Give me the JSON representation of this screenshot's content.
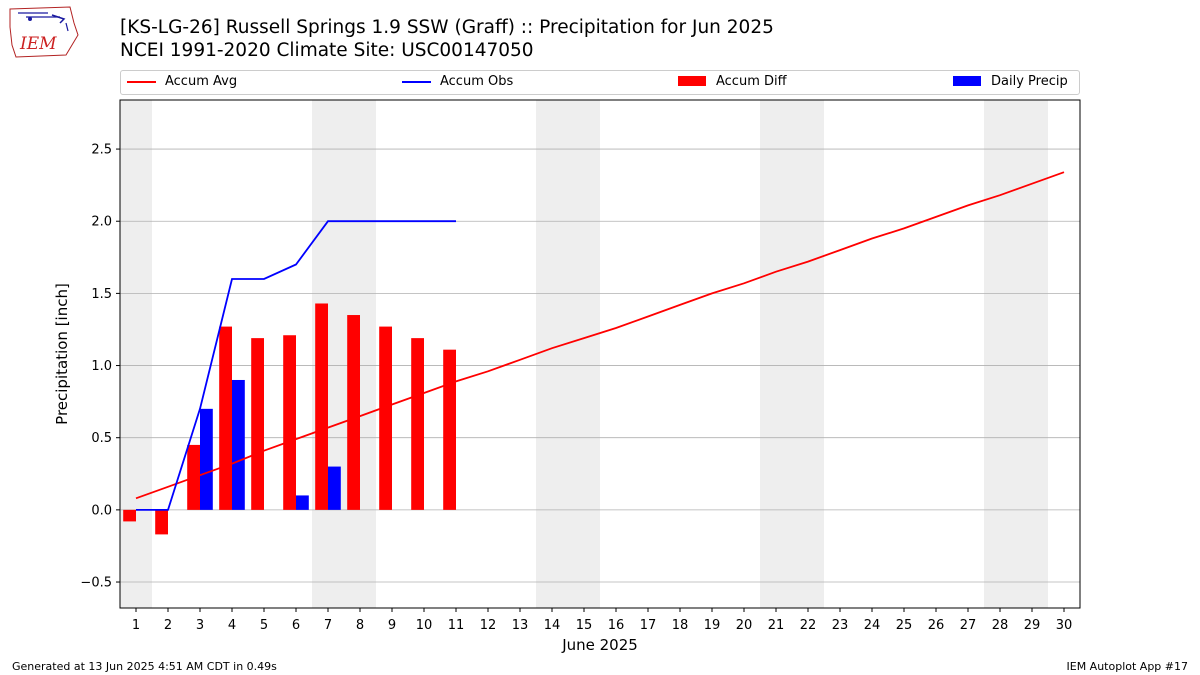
{
  "header": {
    "title_line1": "[KS-LG-26] Russell Springs 1.9 SSW (Graff) :: Precipitation for Jun 2025",
    "title_line2": "NCEI 1991-2020 Climate Site: USC00147050"
  },
  "logo": {
    "text": "IEM"
  },
  "footer": {
    "left": "Generated at 13 Jun 2025 4:51 AM CDT in 0.49s",
    "right": "IEM Autoplot App #17"
  },
  "colors": {
    "accum_avg": "#ff0000",
    "accum_obs": "#0000ff",
    "accum_diff": "#ff0000",
    "daily_precip": "#0000ff",
    "weekend_band": "#eeeeee",
    "grid": "#b0b0b0"
  },
  "chart_data": {
    "type": "bar",
    "xlabel": "June 2025",
    "ylabel": "Precipitation [inch]",
    "xlim": [
      0.5,
      30.5
    ],
    "ylim": [
      -0.68,
      2.84
    ],
    "x_ticks": [
      1,
      2,
      3,
      4,
      5,
      6,
      7,
      8,
      9,
      10,
      11,
      12,
      13,
      14,
      15,
      16,
      17,
      18,
      19,
      20,
      21,
      22,
      23,
      24,
      25,
      26,
      27,
      28,
      29,
      30
    ],
    "y_ticks": [
      -0.5,
      0.0,
      0.5,
      1.0,
      1.5,
      2.0,
      2.5
    ],
    "y_tick_labels": [
      "−0.5",
      "0.0",
      "0.5",
      "1.0",
      "1.5",
      "2.0",
      "2.5"
    ],
    "grid": "horizontal",
    "legend_position": "top",
    "weekend_days": [
      1,
      7,
      8,
      14,
      15,
      21,
      22,
      28,
      29
    ],
    "legend": [
      {
        "name": "Accum Avg",
        "kind": "line",
        "color": "#ff0000"
      },
      {
        "name": "Accum Obs",
        "kind": "line",
        "color": "#0000ff"
      },
      {
        "name": "Accum Diff",
        "kind": "bar",
        "color": "#ff0000"
      },
      {
        "name": "Daily Precip",
        "kind": "bar",
        "color": "#0000ff"
      }
    ],
    "series": [
      {
        "name": "Accum Avg",
        "type": "line",
        "x": [
          1,
          2,
          3,
          4,
          5,
          6,
          7,
          8,
          9,
          10,
          11,
          12,
          13,
          14,
          15,
          16,
          17,
          18,
          19,
          20,
          21,
          22,
          23,
          24,
          25,
          26,
          27,
          28,
          29,
          30
        ],
        "values": [
          0.08,
          0.16,
          0.24,
          0.32,
          0.41,
          0.49,
          0.57,
          0.65,
          0.73,
          0.81,
          0.89,
          0.96,
          1.04,
          1.12,
          1.19,
          1.26,
          1.34,
          1.42,
          1.5,
          1.57,
          1.65,
          1.72,
          1.8,
          1.88,
          1.95,
          2.03,
          2.11,
          2.18,
          2.26,
          2.34
        ]
      },
      {
        "name": "Accum Obs",
        "type": "line",
        "x": [
          1,
          2,
          3,
          4,
          5,
          6,
          7,
          8,
          9,
          10,
          11
        ],
        "values": [
          0.0,
          0.0,
          0.7,
          1.6,
          1.6,
          1.7,
          2.0,
          2.0,
          2.0,
          2.0,
          2.0
        ]
      },
      {
        "name": "Accum Diff",
        "type": "bar",
        "x": [
          1,
          2,
          3,
          4,
          5,
          6,
          7,
          8,
          9,
          10,
          11
        ],
        "values": [
          -0.08,
          -0.17,
          0.45,
          1.27,
          1.19,
          1.21,
          1.43,
          1.35,
          1.27,
          1.19,
          1.11
        ]
      },
      {
        "name": "Daily Precip",
        "type": "bar",
        "x": [
          1,
          2,
          3,
          4,
          5,
          6,
          7,
          8,
          9,
          10,
          11
        ],
        "values": [
          0.0,
          0.0,
          0.7,
          0.9,
          0.0,
          0.1,
          0.3,
          0.0,
          0.0,
          0.0,
          0.0
        ]
      }
    ]
  }
}
